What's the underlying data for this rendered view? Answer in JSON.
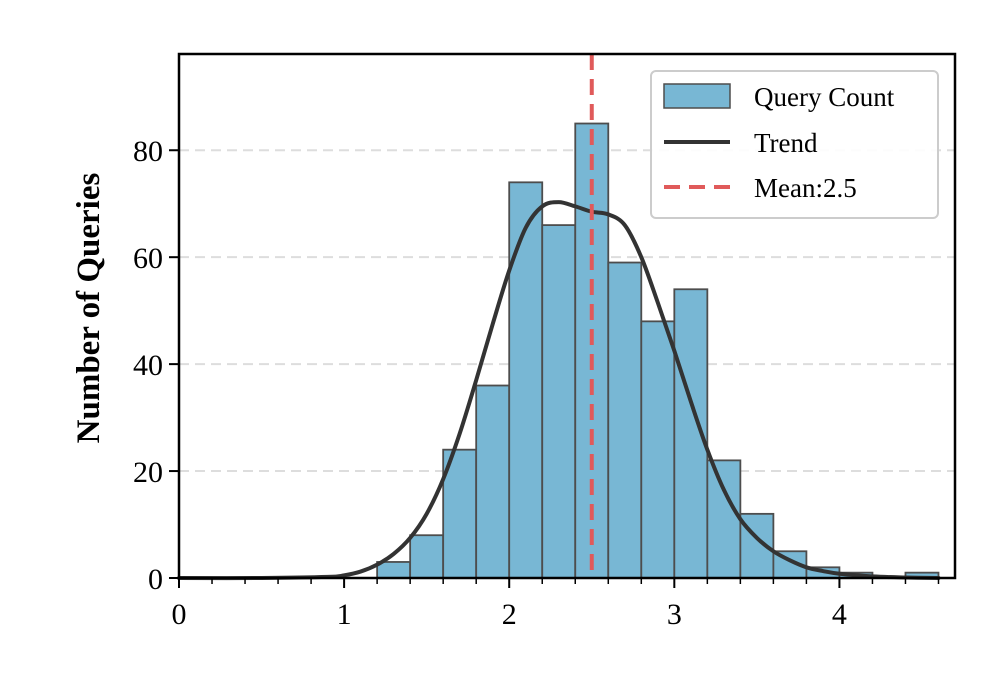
{
  "chart_data": {
    "type": "bar",
    "title": "",
    "xlabel": "",
    "ylabel": "Number of Queries",
    "xlim": [
      0,
      4.7
    ],
    "ylim": [
      0,
      98
    ],
    "bin_width": 0.2,
    "bin_starts": [
      1.2,
      1.4,
      1.6,
      1.8,
      2.0,
      2.2,
      2.4,
      2.6,
      2.8,
      3.0,
      3.2,
      3.4,
      3.6,
      3.8,
      4.0,
      4.2,
      4.4
    ],
    "values": [
      3,
      8,
      24,
      36,
      74,
      66,
      85,
      59,
      48,
      54,
      22,
      12,
      5,
      2,
      1,
      0,
      1
    ],
    "x_major_ticks": [
      0,
      1,
      2,
      3,
      4
    ],
    "x_tick_labels": [
      "0",
      "1",
      "2",
      "3",
      "4"
    ],
    "x_minor_ticks": [
      0.2,
      0.4,
      0.6,
      0.8,
      1.2,
      1.4,
      1.6,
      1.8,
      2.2,
      2.4,
      2.6,
      2.8,
      3.2,
      3.4,
      3.6,
      3.8,
      4.2,
      4.4,
      4.6
    ],
    "y_ticks": [
      0,
      20,
      40,
      60,
      80
    ],
    "y_tick_labels": [
      "0",
      "20",
      "40",
      "60",
      "80"
    ],
    "grid": "y-dashed",
    "mean": 2.5,
    "trend": {
      "x": [
        0,
        0.5,
        0.9,
        1.0,
        1.1,
        1.2,
        1.3,
        1.4,
        1.5,
        1.6,
        1.7,
        1.8,
        1.9,
        2.0,
        2.1,
        2.2,
        2.3,
        2.4,
        2.5,
        2.6,
        2.7,
        2.8,
        2.9,
        3.0,
        3.1,
        3.2,
        3.3,
        3.4,
        3.5,
        3.6,
        3.7,
        3.8,
        3.9,
        4.0,
        4.2,
        4.4,
        4.6
      ],
      "y": [
        0,
        0,
        0.2,
        0.5,
        1.2,
        2.5,
        4.5,
        7.5,
        12,
        18.5,
        27,
        37,
        47.5,
        57.5,
        65.5,
        69.5,
        70.3,
        69.5,
        68.5,
        68,
        66,
        60,
        51.5,
        42.5,
        33,
        24,
        16.5,
        11,
        7.5,
        5,
        3.3,
        2,
        1.3,
        0.8,
        0.3,
        0.1,
        0
      ]
    },
    "legend": {
      "position": "top-right",
      "entries": [
        "Query Count",
        "Trend",
        "Mean:2.5"
      ]
    },
    "colors": {
      "bar_fill": "#78b7d4",
      "bar_edge": "#4d4d4d",
      "trend_line": "#333333",
      "mean_line": "#e05a5a",
      "grid": "#dddddd"
    }
  }
}
